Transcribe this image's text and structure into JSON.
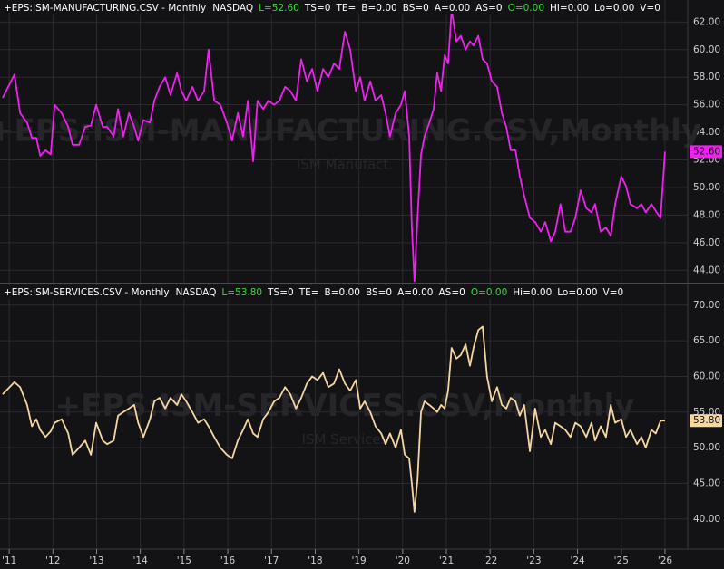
{
  "chart_data": [
    {
      "type": "line",
      "header": [
        {
          "text": "+EPS:ISM-MANUFACTURING.CSV - Monthly",
          "color": "#ffffff"
        },
        {
          "text": "NASDAQ",
          "color": "#ffffff"
        },
        {
          "text": "L=52.60",
          "color": "#33dd33"
        },
        {
          "text": "TS=0",
          "color": "#ffffff"
        },
        {
          "text": "TE=",
          "color": "#ffffff"
        },
        {
          "text": "B=0.00",
          "color": "#ffffff"
        },
        {
          "text": "BS=0",
          "color": "#ffffff"
        },
        {
          "text": "A=0.00",
          "color": "#ffffff"
        },
        {
          "text": "AS=0",
          "color": "#ffffff"
        },
        {
          "text": "O=0.00",
          "color": "#33dd33"
        },
        {
          "text": "Hi=0.00",
          "color": "#ffffff"
        },
        {
          "text": "Lo=0.00",
          "color": "#ffffff"
        },
        {
          "text": "V=0",
          "color": "#ffffff"
        }
      ],
      "watermark": "+EPS:ISM-MANUFACTURING.CSV,Monthly",
      "subtitle": "ISM Manufact.",
      "xlim": [
        2010.79,
        2026.52
      ],
      "ylim": [
        43.1,
        63.6
      ],
      "yticks": [
        {
          "value": 44,
          "label": "44.00"
        },
        {
          "value": 46,
          "label": "46.00"
        },
        {
          "value": 48,
          "label": "48.00"
        },
        {
          "value": 50,
          "label": "50.00"
        },
        {
          "value": 52,
          "label": "52.00"
        },
        {
          "value": 54,
          "label": "54.00"
        },
        {
          "value": 56,
          "label": "56.00"
        },
        {
          "value": 58,
          "label": "58.00"
        },
        {
          "value": 60,
          "label": "60.00"
        },
        {
          "value": 62,
          "label": "62.00"
        }
      ],
      "grid": true,
      "x": [
        2010.85,
        2011.12,
        2011.25,
        2011.41,
        2011.52,
        2011.62,
        2011.71,
        2011.83,
        2011.95,
        2012.04,
        2012.2,
        2012.35,
        2012.45,
        2012.6,
        2012.74,
        2012.87,
        2012.99,
        2013.14,
        2013.24,
        2013.39,
        2013.49,
        2013.61,
        2013.74,
        2013.86,
        2013.95,
        2014.07,
        2014.22,
        2014.32,
        2014.44,
        2014.57,
        2014.69,
        2014.84,
        2014.94,
        2015.05,
        2015.19,
        2015.32,
        2015.46,
        2015.56,
        2015.69,
        2015.83,
        2015.98,
        2016.1,
        2016.23,
        2016.35,
        2016.46,
        2016.58,
        2016.68,
        2016.81,
        2016.93,
        2017.06,
        2017.18,
        2017.31,
        2017.43,
        2017.56,
        2017.68,
        2017.81,
        2017.93,
        2018.05,
        2018.18,
        2018.3,
        2018.43,
        2018.55,
        2018.68,
        2018.8,
        2018.93,
        2019.03,
        2019.13,
        2019.26,
        2019.38,
        2019.51,
        2019.61,
        2019.71,
        2019.84,
        2019.96,
        2020.05,
        2020.15,
        2020.21,
        2020.27,
        2020.34,
        2020.42,
        2020.5,
        2020.61,
        2020.71,
        2020.79,
        2020.88,
        2020.96,
        2021.04,
        2021.12,
        2021.23,
        2021.33,
        2021.44,
        2021.54,
        2021.62,
        2021.73,
        2021.83,
        2021.93,
        2022.04,
        2022.16,
        2022.27,
        2022.37,
        2022.47,
        2022.58,
        2022.68,
        2022.78,
        2022.91,
        2023.03,
        2023.16,
        2023.26,
        2023.39,
        2023.49,
        2023.61,
        2023.72,
        2023.84,
        2023.95,
        2024.07,
        2024.2,
        2024.32,
        2024.4,
        2024.53,
        2024.65,
        2024.76,
        2024.86,
        2025.0,
        2025.11,
        2025.21,
        2025.36,
        2025.46,
        2025.56,
        2025.69,
        2025.79,
        2025.9,
        2026.0
      ],
      "series": [
        {
          "color": "#ee22ee",
          "values": [
            56.5,
            58.2,
            55.4,
            54.7,
            53.6,
            53.6,
            52.3,
            52.7,
            52.4,
            56.0,
            55.4,
            54.4,
            53.1,
            53.1,
            54.4,
            54.5,
            56.0,
            54.4,
            54.4,
            53.7,
            55.7,
            53.7,
            55.4,
            54.4,
            53.4,
            54.9,
            54.7,
            56.3,
            57.3,
            58.0,
            56.7,
            58.3,
            57.0,
            56.3,
            57.3,
            56.3,
            57.0,
            60.0,
            56.3,
            56.0,
            54.7,
            53.4,
            55.4,
            53.7,
            56.3,
            51.9,
            56.3,
            55.7,
            56.3,
            56.0,
            56.3,
            57.3,
            57.0,
            56.3,
            59.3,
            57.7,
            58.6,
            57.0,
            58.6,
            58.0,
            59.0,
            58.6,
            61.3,
            60.0,
            57.0,
            58.0,
            56.3,
            57.7,
            56.3,
            56.7,
            55.4,
            53.7,
            55.4,
            56.0,
            57.0,
            53.7,
            47.1,
            43.2,
            47.8,
            52.4,
            53.7,
            54.7,
            55.7,
            58.3,
            57.0,
            59.6,
            59.0,
            62.9,
            60.6,
            61.0,
            60.0,
            60.6,
            60.3,
            61.0,
            59.3,
            59.0,
            57.7,
            57.3,
            55.4,
            54.4,
            52.7,
            52.7,
            50.8,
            49.4,
            47.8,
            47.5,
            46.8,
            47.5,
            46.1,
            46.8,
            48.8,
            46.8,
            46.8,
            47.8,
            49.8,
            48.5,
            48.2,
            48.8,
            46.8,
            47.1,
            46.5,
            48.8,
            50.8,
            50.1,
            48.8,
            48.5,
            48.8,
            48.2,
            48.8,
            48.3,
            47.8,
            52.6
          ]
        }
      ],
      "last_value": {
        "value": 52.6,
        "label": "52.60"
      }
    },
    {
      "type": "line",
      "header": [
        {
          "text": "+EPS:ISM-SERVICES.CSV - Monthly",
          "color": "#ffffff"
        },
        {
          "text": "NASDAQ",
          "color": "#ffffff"
        },
        {
          "text": "L=53.80",
          "color": "#33dd33"
        },
        {
          "text": "TS=0",
          "color": "#ffffff"
        },
        {
          "text": "TE=",
          "color": "#ffffff"
        },
        {
          "text": "B=0.00",
          "color": "#ffffff"
        },
        {
          "text": "BS=0",
          "color": "#ffffff"
        },
        {
          "text": "A=0.00",
          "color": "#ffffff"
        },
        {
          "text": "AS=0",
          "color": "#ffffff"
        },
        {
          "text": "O=0.00",
          "color": "#33dd33"
        },
        {
          "text": "Hi=0.00",
          "color": "#ffffff"
        },
        {
          "text": "Lo=0.00",
          "color": "#ffffff"
        },
        {
          "text": "V=0",
          "color": "#ffffff"
        }
      ],
      "watermark": "+EPS:ISM-SERVICES.CSV,Monthly",
      "subtitle": "ISM Services",
      "xlim": [
        2010.79,
        2026.52
      ],
      "xticks": [
        {
          "value": 2011,
          "label": "'11"
        },
        {
          "value": 2012,
          "label": "'12"
        },
        {
          "value": 2013,
          "label": "'13"
        },
        {
          "value": 2014,
          "label": "'14"
        },
        {
          "value": 2015,
          "label": "'15"
        },
        {
          "value": 2016,
          "label": "'16"
        },
        {
          "value": 2017,
          "label": "'17"
        },
        {
          "value": 2018,
          "label": "'18"
        },
        {
          "value": 2019,
          "label": "'19"
        },
        {
          "value": 2020,
          "label": "'20"
        },
        {
          "value": 2021,
          "label": "'21"
        },
        {
          "value": 2022,
          "label": "'22"
        },
        {
          "value": 2023,
          "label": "'23"
        },
        {
          "value": 2024,
          "label": "'24"
        },
        {
          "value": 2025,
          "label": "'25"
        },
        {
          "value": 2026,
          "label": "'26"
        }
      ],
      "ylim": [
        35.9,
        72.9
      ],
      "yticks": [
        {
          "value": 40,
          "label": "40.00"
        },
        {
          "value": 45,
          "label": "45.00"
        },
        {
          "value": 50,
          "label": "50.00"
        },
        {
          "value": 55,
          "label": "55.00"
        },
        {
          "value": 60,
          "label": "60.00"
        },
        {
          "value": 65,
          "label": "65.00"
        },
        {
          "value": 70,
          "label": "70.00"
        }
      ],
      "grid": true,
      "x": [
        2010.85,
        2011.12,
        2011.25,
        2011.41,
        2011.52,
        2011.62,
        2011.71,
        2011.83,
        2011.95,
        2012.04,
        2012.2,
        2012.35,
        2012.45,
        2012.6,
        2012.74,
        2012.87,
        2012.99,
        2013.14,
        2013.24,
        2013.39,
        2013.49,
        2013.61,
        2013.74,
        2013.86,
        2013.95,
        2014.07,
        2014.22,
        2014.32,
        2014.44,
        2014.57,
        2014.69,
        2014.84,
        2014.94,
        2015.05,
        2015.19,
        2015.32,
        2015.46,
        2015.56,
        2015.69,
        2015.83,
        2015.98,
        2016.1,
        2016.23,
        2016.35,
        2016.46,
        2016.58,
        2016.68,
        2016.81,
        2016.93,
        2017.06,
        2017.18,
        2017.31,
        2017.43,
        2017.56,
        2017.68,
        2017.81,
        2017.93,
        2018.05,
        2018.18,
        2018.3,
        2018.43,
        2018.55,
        2018.68,
        2018.8,
        2018.93,
        2019.03,
        2019.13,
        2019.26,
        2019.38,
        2019.51,
        2019.61,
        2019.71,
        2019.84,
        2019.96,
        2020.05,
        2020.15,
        2020.21,
        2020.27,
        2020.34,
        2020.42,
        2020.5,
        2020.61,
        2020.71,
        2020.79,
        2020.88,
        2020.96,
        2021.04,
        2021.12,
        2021.23,
        2021.33,
        2021.44,
        2021.54,
        2021.62,
        2021.73,
        2021.83,
        2021.93,
        2022.04,
        2022.16,
        2022.27,
        2022.37,
        2022.47,
        2022.58,
        2022.68,
        2022.78,
        2022.91,
        2023.03,
        2023.16,
        2023.26,
        2023.39,
        2023.49,
        2023.61,
        2023.72,
        2023.84,
        2023.95,
        2024.07,
        2024.2,
        2024.32,
        2024.4,
        2024.53,
        2024.65,
        2024.76,
        2024.86,
        2025.0,
        2025.11,
        2025.21,
        2025.36,
        2025.46,
        2025.56,
        2025.69,
        2025.79,
        2025.9,
        2026.0
      ],
      "series": [
        {
          "color": "#f5d7a3",
          "values": [
            57.5,
            59.2,
            58.5,
            56.0,
            53.0,
            54.0,
            52.5,
            51.5,
            52.3,
            53.5,
            54.0,
            52.0,
            49.0,
            50.0,
            51.0,
            49.0,
            53.5,
            51.0,
            50.5,
            51.0,
            54.5,
            55.0,
            55.5,
            56.0,
            53.5,
            51.5,
            54.0,
            56.5,
            57.0,
            55.5,
            57.0,
            56.0,
            57.5,
            56.5,
            55.0,
            53.5,
            54.0,
            53.0,
            51.5,
            50.0,
            49.0,
            48.5,
            51.0,
            52.5,
            54.0,
            52.0,
            51.5,
            54.0,
            55.0,
            56.5,
            57.0,
            58.5,
            57.5,
            55.5,
            57.0,
            59.0,
            60.0,
            59.5,
            60.5,
            58.5,
            59.0,
            61.0,
            59.0,
            58.0,
            59.5,
            55.5,
            56.5,
            55.0,
            53.0,
            52.0,
            50.5,
            52.0,
            50.0,
            52.5,
            49.0,
            48.5,
            45.0,
            41.0,
            45.5,
            55.0,
            56.5,
            56.0,
            55.5,
            55.0,
            56.0,
            55.5,
            58.0,
            64.0,
            62.5,
            63.0,
            64.5,
            61.5,
            64.0,
            66.5,
            67.0,
            60.0,
            56.5,
            58.5,
            56.0,
            55.5,
            57.0,
            56.5,
            54.5,
            56.0,
            49.5,
            55.5,
            51.5,
            52.5,
            50.5,
            53.5,
            53.0,
            52.5,
            51.5,
            53.5,
            53.0,
            51.5,
            53.5,
            51.0,
            53.0,
            51.5,
            56.0,
            53.5,
            54.0,
            51.5,
            52.5,
            50.5,
            51.5,
            50.0,
            52.5,
            52.0,
            53.8,
            53.8
          ]
        }
      ],
      "last_value": {
        "value": 53.8,
        "label": "53.80"
      }
    }
  ]
}
